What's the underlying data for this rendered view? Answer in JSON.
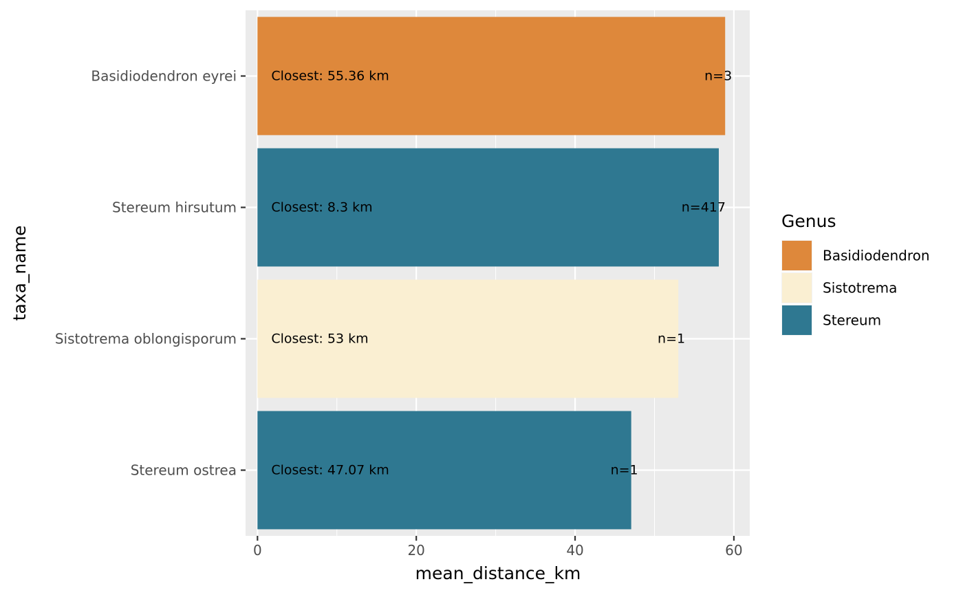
{
  "chart_data": {
    "type": "bar",
    "orientation": "horizontal",
    "xlabel": "mean_distance_km",
    "ylabel": "taxa_name",
    "xlim": [
      -1.5,
      62
    ],
    "x_ticks": [
      0,
      20,
      40,
      60
    ],
    "x_tick_labels": [
      "0",
      "20",
      "40",
      "60"
    ],
    "grid": true,
    "legend": {
      "title": "Genus",
      "position": "right"
    },
    "genus_colors": {
      "Basidiodendron": "#DE883B",
      "Sistotrema": "#FAEFD2",
      "Stereum": "#2F7891"
    },
    "categories": [
      "Basidiodendron eyrei",
      "Stereum hirsutum",
      "Sistotrema oblongisporum",
      "Stereum ostrea"
    ],
    "bars": [
      {
        "taxa_name": "Basidiodendron eyrei",
        "genus": "Basidiodendron",
        "mean_distance_km": 58.9,
        "closest_label": "Closest: 55.36 km",
        "n_label": "n=3"
      },
      {
        "taxa_name": "Stereum hirsutum",
        "genus": "Stereum",
        "mean_distance_km": 58.1,
        "closest_label": "Closest: 8.3 km",
        "n_label": "n=417"
      },
      {
        "taxa_name": "Sistotrema oblongisporum",
        "genus": "Sistotrema",
        "mean_distance_km": 53.0,
        "closest_label": "Closest: 53 km",
        "n_label": "n=1"
      },
      {
        "taxa_name": "Stereum ostrea",
        "genus": "Stereum",
        "mean_distance_km": 47.07,
        "closest_label": "Closest: 47.07 km",
        "n_label": "n=1"
      }
    ],
    "legend_entries": [
      "Basidiodendron",
      "Sistotrema",
      "Stereum"
    ]
  }
}
